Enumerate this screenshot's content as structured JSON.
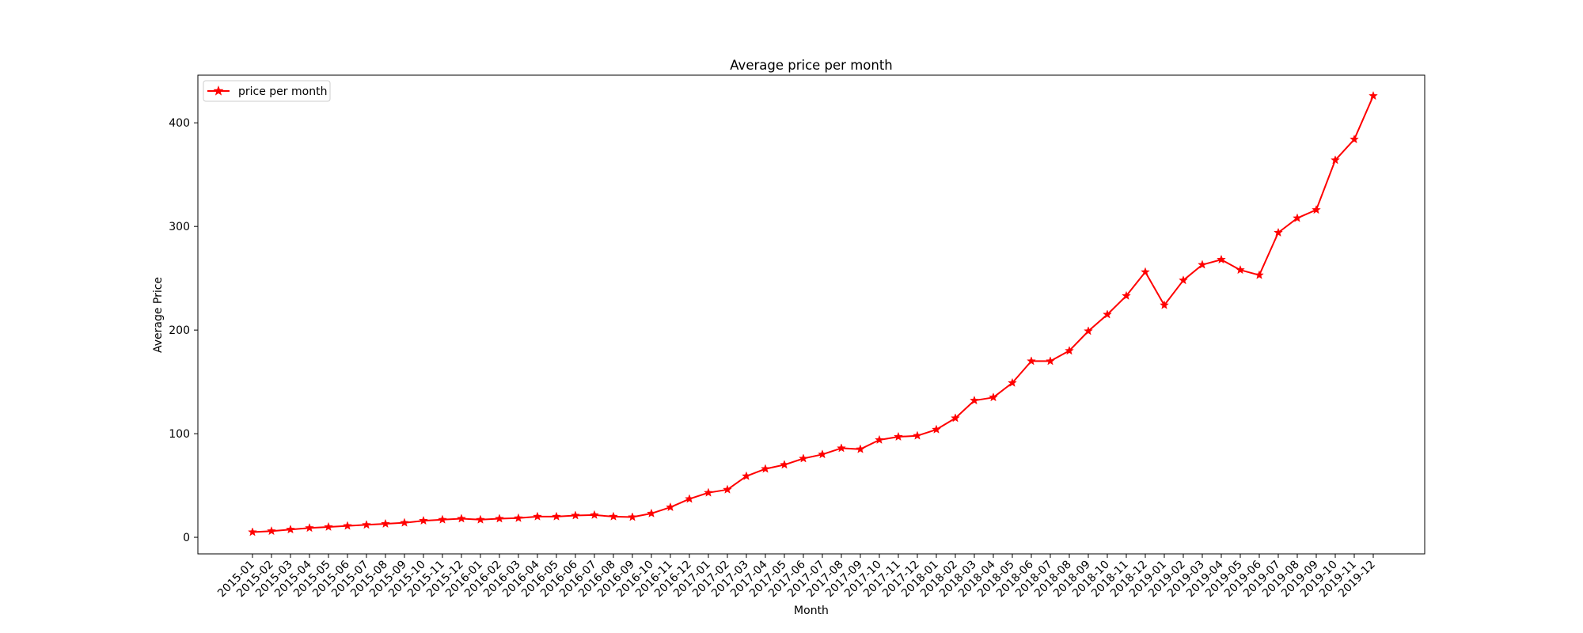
{
  "chart_data": {
    "type": "line",
    "title": "Average price per month",
    "xlabel": "Month",
    "ylabel": "Average Price",
    "ylim": [
      -16,
      446
    ],
    "yticks": [
      0,
      100,
      200,
      300,
      400
    ],
    "grid": false,
    "legend_position": "upper-left",
    "categories": [
      "2015-01",
      "2015-02",
      "2015-03",
      "2015-04",
      "2015-05",
      "2015-06",
      "2015-07",
      "2015-08",
      "2015-09",
      "2015-10",
      "2015-11",
      "2015-12",
      "2016-01",
      "2016-02",
      "2016-03",
      "2016-04",
      "2016-05",
      "2016-06",
      "2016-07",
      "2016-08",
      "2016-09",
      "2016-10",
      "2016-11",
      "2016-12",
      "2017-01",
      "2017-02",
      "2017-03",
      "2017-04",
      "2017-05",
      "2017-06",
      "2017-07",
      "2017-08",
      "2017-09",
      "2017-10",
      "2017-11",
      "2017-12",
      "2018-01",
      "2018-02",
      "2018-03",
      "2018-04",
      "2018-05",
      "2018-06",
      "2018-07",
      "2018-08",
      "2018-09",
      "2018-10",
      "2018-11",
      "2018-12",
      "2019-01",
      "2019-02",
      "2019-03",
      "2019-04",
      "2019-05",
      "2019-06",
      "2019-07",
      "2019-08",
      "2019-09",
      "2019-10",
      "2019-11",
      "2019-12"
    ],
    "series": [
      {
        "name": "price per month",
        "color": "#ff0000",
        "marker": "star",
        "values": [
          5,
          6,
          7.5,
          9,
          10,
          11,
          12,
          13,
          14,
          16,
          17,
          18,
          17,
          18,
          18.5,
          20,
          20,
          21,
          21.5,
          20,
          19.5,
          23,
          29,
          37,
          43,
          46,
          59,
          66,
          70,
          76,
          80,
          86,
          85,
          94,
          97,
          98,
          104,
          115,
          132,
          135,
          149,
          170,
          170,
          180,
          199,
          215,
          233,
          256,
          224,
          248,
          263,
          268,
          258,
          253,
          294,
          308,
          316,
          364,
          384,
          426
        ]
      }
    ]
  }
}
